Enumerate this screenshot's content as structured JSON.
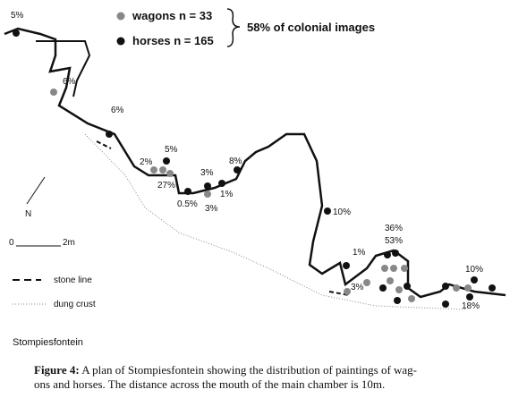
{
  "legend": {
    "wagons": "wagons n = 33",
    "horses": "horses n = 165",
    "summary": "58% of colonial images"
  },
  "labels": [
    "5%",
    "6%",
    "6%",
    "5%",
    "2%",
    "27%",
    "3%",
    "8%",
    "1%",
    "0.5%",
    "3%",
    "10%",
    "1%",
    "36%",
    "53%",
    "3%",
    "10%",
    "18%"
  ],
  "north": "N",
  "scale": {
    "start": "0",
    "end": "2m"
  },
  "key": {
    "stone": "stone line",
    "dung": "dung crust"
  },
  "site": "Stompiesfontein",
  "caption": {
    "lead": "Figure 4:",
    "lines": [
      "A plan of Stompiesfontein showing the distribution of paintings of wag-",
      "ons and horses. The distance across the mouth of the main chamber is 10m."
    ]
  }
}
